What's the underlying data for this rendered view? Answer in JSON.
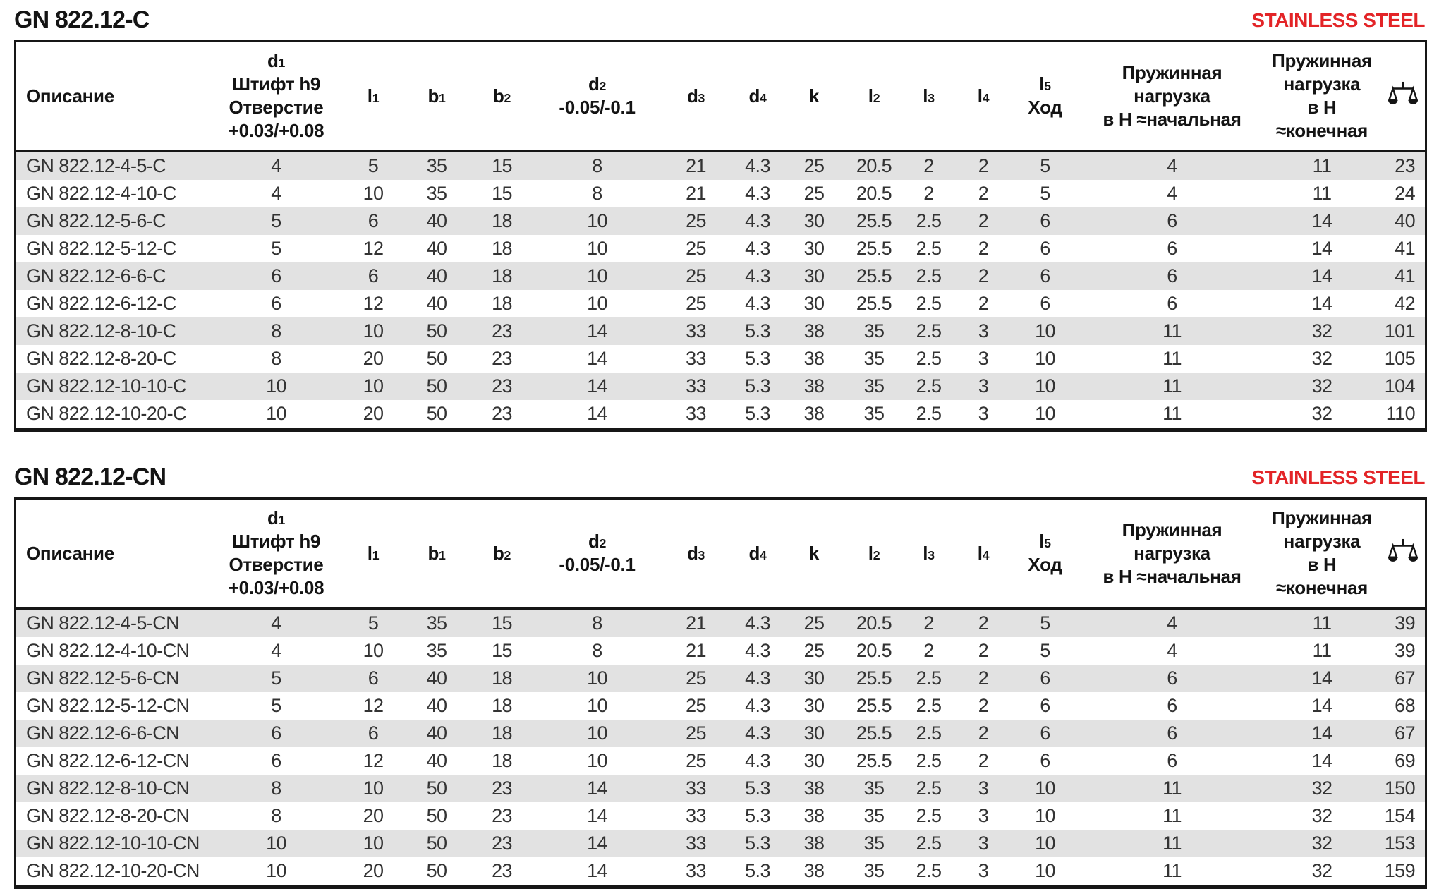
{
  "colors": {
    "accent_red": "#e32427",
    "row_alt_grey": "#e2e2e2",
    "table_border": "#161616",
    "text_dark": "#141414"
  },
  "sections": [
    {
      "title": "GN 822.12-C",
      "steel_label": "STAINLESS STEEL",
      "table": {
        "columns": [
          {
            "label": "Описание",
            "align": "left"
          },
          {
            "main": "d",
            "sub": "1",
            "lines": [
              "Штифт h9",
              "Отверстие",
              "+0.03/+0.08"
            ]
          },
          {
            "main": "l",
            "sub": "1"
          },
          {
            "main": "b",
            "sub": "1"
          },
          {
            "main": "b",
            "sub": "2"
          },
          {
            "main": "d",
            "sub": "2",
            "lines": [
              "-0.05/-0.1"
            ]
          },
          {
            "main": "d",
            "sub": "3"
          },
          {
            "main": "d",
            "sub": "4"
          },
          {
            "main": "k"
          },
          {
            "main": "l",
            "sub": "2"
          },
          {
            "main": "l",
            "sub": "3"
          },
          {
            "main": "l",
            "sub": "4"
          },
          {
            "main": "l",
            "sub": "5",
            "lines": [
              "Ход"
            ]
          },
          {
            "lines": [
              "Пружинная",
              "нагрузка",
              "в Н ≈начальная"
            ]
          },
          {
            "lines": [
              "Пружинная",
              "нагрузка",
              "в Н ≈конечная"
            ]
          },
          {
            "icon": "scale-icon",
            "align": "right"
          }
        ],
        "rows": [
          [
            "GN 822.12-4-5-C",
            "4",
            "5",
            "35",
            "15",
            "8",
            "21",
            "4.3",
            "25",
            "20.5",
            "2",
            "2",
            "5",
            "4",
            "11",
            "23"
          ],
          [
            "GN 822.12-4-10-C",
            "4",
            "10",
            "35",
            "15",
            "8",
            "21",
            "4.3",
            "25",
            "20.5",
            "2",
            "2",
            "5",
            "4",
            "11",
            "24"
          ],
          [
            "GN 822.12-5-6-C",
            "5",
            "6",
            "40",
            "18",
            "10",
            "25",
            "4.3",
            "30",
            "25.5",
            "2.5",
            "2",
            "6",
            "6",
            "14",
            "40"
          ],
          [
            "GN 822.12-5-12-C",
            "5",
            "12",
            "40",
            "18",
            "10",
            "25",
            "4.3",
            "30",
            "25.5",
            "2.5",
            "2",
            "6",
            "6",
            "14",
            "41"
          ],
          [
            "GN 822.12-6-6-C",
            "6",
            "6",
            "40",
            "18",
            "10",
            "25",
            "4.3",
            "30",
            "25.5",
            "2.5",
            "2",
            "6",
            "6",
            "14",
            "41"
          ],
          [
            "GN 822.12-6-12-C",
            "6",
            "12",
            "40",
            "18",
            "10",
            "25",
            "4.3",
            "30",
            "25.5",
            "2.5",
            "2",
            "6",
            "6",
            "14",
            "42"
          ],
          [
            "GN 822.12-8-10-C",
            "8",
            "10",
            "50",
            "23",
            "14",
            "33",
            "5.3",
            "38",
            "35",
            "2.5",
            "3",
            "10",
            "11",
            "32",
            "101"
          ],
          [
            "GN 822.12-8-20-C",
            "8",
            "20",
            "50",
            "23",
            "14",
            "33",
            "5.3",
            "38",
            "35",
            "2.5",
            "3",
            "10",
            "11",
            "32",
            "105"
          ],
          [
            "GN 822.12-10-10-C",
            "10",
            "10",
            "50",
            "23",
            "14",
            "33",
            "5.3",
            "38",
            "35",
            "2.5",
            "3",
            "10",
            "11",
            "32",
            "104"
          ],
          [
            "GN 822.12-10-20-C",
            "10",
            "20",
            "50",
            "23",
            "14",
            "33",
            "5.3",
            "38",
            "35",
            "2.5",
            "3",
            "10",
            "11",
            "32",
            "110"
          ]
        ]
      }
    },
    {
      "title": "GN 822.12-CN",
      "steel_label": "STAINLESS STEEL",
      "table": {
        "columns": [
          {
            "label": "Описание",
            "align": "left"
          },
          {
            "main": "d",
            "sub": "1",
            "lines": [
              "Штифт h9",
              "Отверстие",
              "+0.03/+0.08"
            ]
          },
          {
            "main": "l",
            "sub": "1"
          },
          {
            "main": "b",
            "sub": "1"
          },
          {
            "main": "b",
            "sub": "2"
          },
          {
            "main": "d",
            "sub": "2",
            "lines": [
              "-0.05/-0.1"
            ]
          },
          {
            "main": "d",
            "sub": "3"
          },
          {
            "main": "d",
            "sub": "4"
          },
          {
            "main": "k"
          },
          {
            "main": "l",
            "sub": "2"
          },
          {
            "main": "l",
            "sub": "3"
          },
          {
            "main": "l",
            "sub": "4"
          },
          {
            "main": "l",
            "sub": "5",
            "lines": [
              "Ход"
            ]
          },
          {
            "lines": [
              "Пружинная",
              "нагрузка",
              "в Н ≈начальная"
            ]
          },
          {
            "lines": [
              "Пружинная",
              "нагрузка",
              "в Н ≈конечная"
            ]
          },
          {
            "icon": "scale-icon",
            "align": "right"
          }
        ],
        "rows": [
          [
            "GN 822.12-4-5-CN",
            "4",
            "5",
            "35",
            "15",
            "8",
            "21",
            "4.3",
            "25",
            "20.5",
            "2",
            "2",
            "5",
            "4",
            "11",
            "39"
          ],
          [
            "GN 822.12-4-10-CN",
            "4",
            "10",
            "35",
            "15",
            "8",
            "21",
            "4.3",
            "25",
            "20.5",
            "2",
            "2",
            "5",
            "4",
            "11",
            "39"
          ],
          [
            "GN 822.12-5-6-CN",
            "5",
            "6",
            "40",
            "18",
            "10",
            "25",
            "4.3",
            "30",
            "25.5",
            "2.5",
            "2",
            "6",
            "6",
            "14",
            "67"
          ],
          [
            "GN 822.12-5-12-CN",
            "5",
            "12",
            "40",
            "18",
            "10",
            "25",
            "4.3",
            "30",
            "25.5",
            "2.5",
            "2",
            "6",
            "6",
            "14",
            "68"
          ],
          [
            "GN 822.12-6-6-CN",
            "6",
            "6",
            "40",
            "18",
            "10",
            "25",
            "4.3",
            "30",
            "25.5",
            "2.5",
            "2",
            "6",
            "6",
            "14",
            "67"
          ],
          [
            "GN 822.12-6-12-CN",
            "6",
            "12",
            "40",
            "18",
            "10",
            "25",
            "4.3",
            "30",
            "25.5",
            "2.5",
            "2",
            "6",
            "6",
            "14",
            "69"
          ],
          [
            "GN 822.12-8-10-CN",
            "8",
            "10",
            "50",
            "23",
            "14",
            "33",
            "5.3",
            "38",
            "35",
            "2.5",
            "3",
            "10",
            "11",
            "32",
            "150"
          ],
          [
            "GN 822.12-8-20-CN",
            "8",
            "20",
            "50",
            "23",
            "14",
            "33",
            "5.3",
            "38",
            "35",
            "2.5",
            "3",
            "10",
            "11",
            "32",
            "154"
          ],
          [
            "GN 822.12-10-10-CN",
            "10",
            "10",
            "50",
            "23",
            "14",
            "33",
            "5.3",
            "38",
            "35",
            "2.5",
            "3",
            "10",
            "11",
            "32",
            "153"
          ],
          [
            "GN 822.12-10-20-CN",
            "10",
            "20",
            "50",
            "23",
            "14",
            "33",
            "5.3",
            "38",
            "35",
            "2.5",
            "3",
            "10",
            "11",
            "32",
            "159"
          ]
        ]
      }
    }
  ]
}
